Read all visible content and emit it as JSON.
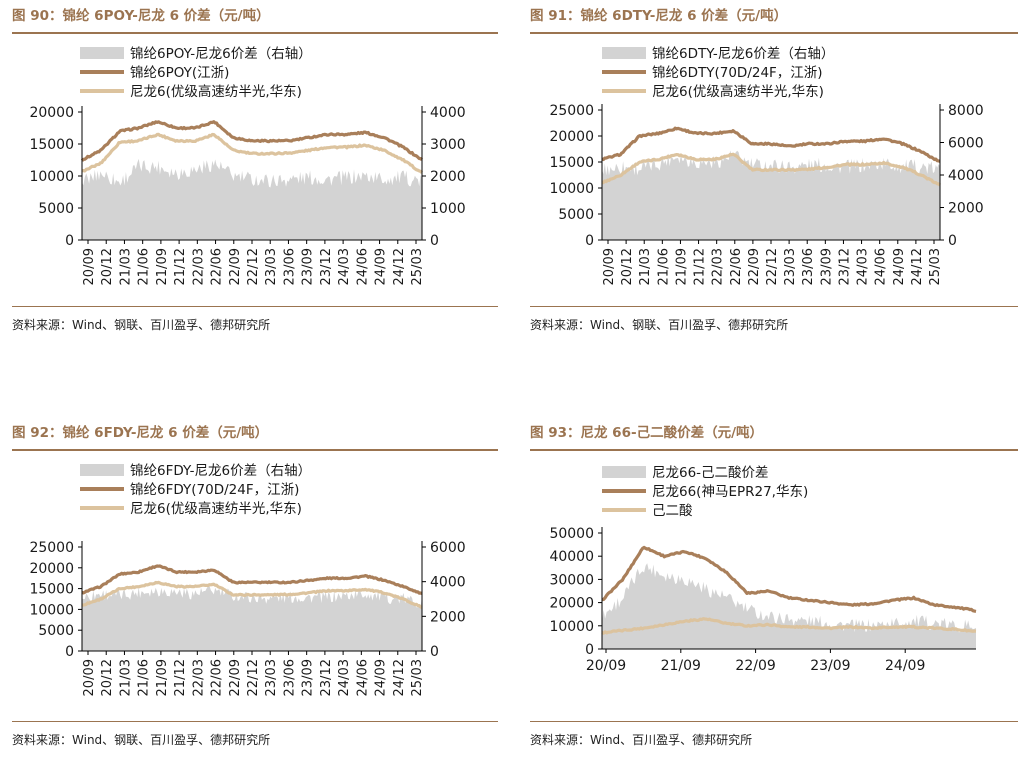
{
  "source_prefix": "资料来源：",
  "charts": [
    {
      "id": "fig90",
      "title": "图 90：锦纶 6POY-尼龙 6 价差（元/吨）",
      "source": "Wind、钢联、百川盈孚、德邦研究所",
      "chart_data": {
        "type": "line",
        "x_tick_labels": [
          "20/09",
          "20/12",
          "21/03",
          "21/06",
          "21/09",
          "21/12",
          "22/03",
          "22/06",
          "22/09",
          "22/12",
          "23/03",
          "23/06",
          "23/09",
          "23/12",
          "24/03",
          "24/06",
          "24/09",
          "24/12",
          "25/03"
        ],
        "left_ylim": [
          0,
          20000
        ],
        "left_yticks": [
          0,
          5000,
          10000,
          15000,
          20000
        ],
        "right_ylim": [
          0,
          4000
        ],
        "right_yticks": [
          0,
          1000,
          2000,
          3000,
          4000
        ],
        "x_tick_rotation": "vertical",
        "legend_position": "top-center",
        "series": [
          {
            "name": "锦纶6POY-尼龙6价差（右轴）",
            "kind": "area",
            "axis": "right",
            "color": "#d3d3d3",
            "x": [
              "20/09",
              "20/12",
              "21/03",
              "21/06",
              "21/09",
              "21/12",
              "22/03",
              "22/06",
              "22/09",
              "22/12",
              "23/03",
              "23/06",
              "23/09",
              "23/12",
              "24/03",
              "24/06",
              "24/09",
              "24/12",
              "25/03"
            ],
            "y": [
              1800,
              2100,
              1800,
              2300,
              2300,
              2100,
              2200,
              2400,
              2000,
              1900,
              1850,
              1900,
              1950,
              1900,
              1950,
              2000,
              1900,
              1950,
              1850
            ]
          },
          {
            "name": "锦纶6POY(江浙)",
            "kind": "line",
            "axis": "left",
            "color": "#a97f5a",
            "x": [
              "20/09",
              "20/12",
              "21/03",
              "21/06",
              "21/09",
              "21/12",
              "22/03",
              "22/06",
              "22/09",
              "22/12",
              "23/03",
              "23/06",
              "23/09",
              "23/12",
              "24/03",
              "24/06",
              "24/09",
              "24/12",
              "25/03"
            ],
            "y": [
              12500,
              14000,
              17000,
              17500,
              18500,
              17500,
              17500,
              18500,
              16000,
              15500,
              15500,
              15500,
              16000,
              16500,
              16500,
              16800,
              16000,
              14500,
              12500
            ]
          },
          {
            "name": "尼龙6(优级高速纺半光,华东)",
            "kind": "line",
            "axis": "left",
            "color": "#dcc39e",
            "x": [
              "20/09",
              "20/12",
              "21/03",
              "21/06",
              "21/09",
              "21/12",
              "22/03",
              "22/06",
              "22/09",
              "22/12",
              "23/03",
              "23/06",
              "23/09",
              "23/12",
              "24/03",
              "24/06",
              "24/09",
              "24/12",
              "25/03"
            ],
            "y": [
              10700,
              12000,
              15300,
              15500,
              16500,
              15500,
              15500,
              16500,
              14000,
              13500,
              13500,
              13600,
              14000,
              14500,
              14500,
              14800,
              14000,
              12500,
              10500
            ]
          }
        ]
      }
    },
    {
      "id": "fig91",
      "title": "图 91：锦纶 6DTY-尼龙 6 价差（元/吨）",
      "source": "Wind、钢联、百川盈孚、德邦研究所",
      "chart_data": {
        "type": "line",
        "x_tick_labels": [
          "20/09",
          "20/12",
          "21/03",
          "21/06",
          "21/09",
          "21/12",
          "22/03",
          "22/06",
          "22/09",
          "22/12",
          "23/03",
          "23/06",
          "23/09",
          "23/12",
          "24/03",
          "24/06",
          "24/09",
          "24/12",
          "25/03"
        ],
        "left_ylim": [
          0,
          25000
        ],
        "left_yticks": [
          0,
          5000,
          10000,
          15000,
          20000,
          25000
        ],
        "right_ylim": [
          0,
          8000
        ],
        "right_yticks": [
          0,
          2000,
          4000,
          6000,
          8000
        ],
        "x_tick_rotation": "vertical",
        "legend_position": "top-center",
        "series": [
          {
            "name": "锦纶6DTY-尼龙6价差（右轴）",
            "kind": "area",
            "axis": "right",
            "color": "#d3d3d3",
            "x": [
              "20/09",
              "20/12",
              "21/03",
              "21/06",
              "21/09",
              "21/12",
              "22/03",
              "22/06",
              "22/09",
              "22/12",
              "23/03",
              "23/06",
              "23/09",
              "23/12",
              "24/03",
              "24/06",
              "24/09",
              "24/12",
              "25/03"
            ],
            "y": [
              4300,
              4500,
              4400,
              4700,
              5200,
              4800,
              4800,
              5200,
              4600,
              4600,
              4500,
              4600,
              4600,
              4500,
              4600,
              4700,
              4500,
              4500,
              4300
            ]
          },
          {
            "name": "锦纶6DTY(70D/24F，江浙)",
            "kind": "line",
            "axis": "left",
            "color": "#a97f5a",
            "x": [
              "20/09",
              "20/12",
              "21/03",
              "21/06",
              "21/09",
              "21/12",
              "22/03",
              "22/06",
              "22/09",
              "22/12",
              "23/03",
              "23/06",
              "23/09",
              "23/12",
              "24/03",
              "24/06",
              "24/09",
              "24/12",
              "25/03"
            ],
            "y": [
              15500,
              16500,
              20000,
              20500,
              21500,
              20500,
              20500,
              21000,
              18500,
              18500,
              18000,
              18500,
              18500,
              19000,
              19000,
              19500,
              18500,
              17000,
              15000
            ]
          },
          {
            "name": "尼龙6(优级高速纺半光,华东)",
            "kind": "line",
            "axis": "left",
            "color": "#dcc39e",
            "x": [
              "20/09",
              "20/12",
              "21/03",
              "21/06",
              "21/09",
              "21/12",
              "22/03",
              "22/06",
              "22/09",
              "22/12",
              "23/03",
              "23/06",
              "23/09",
              "23/12",
              "24/03",
              "24/06",
              "24/09",
              "24/12",
              "25/03"
            ],
            "y": [
              11000,
              12500,
              15000,
              15500,
              16500,
              15500,
              15500,
              16500,
              13500,
              13500,
              13500,
              13600,
              14000,
              14500,
              14500,
              14800,
              14000,
              12500,
              10500
            ]
          }
        ]
      }
    },
    {
      "id": "fig92",
      "title": "图 92：锦纶 6FDY-尼龙 6 价差（元/吨）",
      "source": "Wind、钢联、百川盈孚、德邦研究所",
      "chart_data": {
        "type": "line",
        "x_tick_labels": [
          "20/09",
          "20/12",
          "21/03",
          "21/06",
          "21/09",
          "21/12",
          "22/03",
          "22/06",
          "22/09",
          "22/12",
          "23/03",
          "23/06",
          "23/09",
          "23/12",
          "24/03",
          "24/06",
          "24/09",
          "24/12",
          "25/03"
        ],
        "left_ylim": [
          0,
          25000
        ],
        "left_yticks": [
          0,
          5000,
          10000,
          15000,
          20000,
          25000
        ],
        "right_ylim": [
          0,
          6000
        ],
        "right_yticks": [
          0,
          2000,
          4000,
          6000
        ],
        "x_tick_rotation": "vertical",
        "legend_position": "top-center",
        "series": [
          {
            "name": "锦纶6FDY-尼龙6价差（右轴）",
            "kind": "area",
            "axis": "right",
            "color": "#d3d3d3",
            "x": [
              "20/09",
              "20/12",
              "21/03",
              "21/06",
              "21/09",
              "21/12",
              "22/03",
              "22/06",
              "22/09",
              "22/12",
              "23/03",
              "23/06",
              "23/09",
              "23/12",
              "24/03",
              "24/06",
              "24/09",
              "24/12",
              "25/03"
            ],
            "y": [
              3100,
              3300,
              3200,
              3400,
              3500,
              3400,
              3300,
              3500,
              3200,
              3100,
              3050,
              3100,
              3100,
              3100,
              3200,
              3300,
              3100,
              3000,
              2800
            ]
          },
          {
            "name": "锦纶6FDY(70D/24F，江浙)",
            "kind": "line",
            "axis": "left",
            "color": "#a97f5a",
            "x": [
              "20/09",
              "20/12",
              "21/03",
              "21/06",
              "21/09",
              "21/12",
              "22/03",
              "22/06",
              "22/09",
              "22/12",
              "23/03",
              "23/06",
              "23/09",
              "23/12",
              "24/03",
              "24/06",
              "24/09",
              "24/12",
              "25/03"
            ],
            "y": [
              14000,
              15500,
              18500,
              19000,
              20500,
              19000,
              19000,
              19500,
              16500,
              16500,
              16500,
              16500,
              17000,
              17500,
              17500,
              18000,
              17000,
              15500,
              13800
            ]
          },
          {
            "name": "尼龙6(优级高速纺半光,华东)",
            "kind": "line",
            "axis": "left",
            "color": "#dcc39e",
            "x": [
              "20/09",
              "20/12",
              "21/03",
              "21/06",
              "21/09",
              "21/12",
              "22/03",
              "22/06",
              "22/09",
              "22/12",
              "23/03",
              "23/06",
              "23/09",
              "23/12",
              "24/03",
              "24/06",
              "24/09",
              "24/12",
              "25/03"
            ],
            "y": [
              11000,
              12500,
              15000,
              15500,
              16500,
              15500,
              15500,
              16000,
              13500,
              13500,
              13500,
              13600,
              14000,
              14500,
              14500,
              14800,
              14000,
              12500,
              10500
            ]
          }
        ]
      }
    },
    {
      "id": "fig93",
      "title": "图 93：尼龙 66-己二酸价差（元/吨）",
      "source": "Wind、百川盈孚、德邦研究所",
      "chart_data": {
        "type": "line",
        "x_tick_labels": [
          "20/09",
          "21/09",
          "22/09",
          "23/09",
          "24/09"
        ],
        "left_ylim": [
          0,
          50000
        ],
        "left_yticks": [
          0,
          10000,
          20000,
          30000,
          40000,
          50000
        ],
        "x_tick_rotation": "horizontal",
        "legend_position": "top-center",
        "series": [
          {
            "name": "尼龙66-己二酸价差",
            "kind": "area",
            "axis": "left",
            "color": "#d3d3d3",
            "x": [
              "20/09",
              "20/12",
              "21/03",
              "21/06",
              "21/09",
              "21/12",
              "22/03",
              "22/06",
              "22/09",
              "22/12",
              "23/03",
              "23/06",
              "23/09",
              "23/12",
              "24/03",
              "24/06",
              "24/09",
              "24/12",
              "25/03"
            ],
            "y": [
              14000,
              22000,
              36000,
              32000,
              30000,
              26000,
              22000,
              17000,
              14000,
              13000,
              12000,
              11000,
              10000,
              10000,
              11000,
              12000,
              11000,
              10000,
              10000
            ]
          },
          {
            "name": "尼龙66(神马EPR27,华东)",
            "kind": "line",
            "axis": "left",
            "color": "#a97f5a",
            "x": [
              "20/09",
              "20/12",
              "21/03",
              "21/06",
              "21/09",
              "21/12",
              "22/03",
              "22/06",
              "22/09",
              "22/12",
              "23/03",
              "23/06",
              "23/09",
              "23/12",
              "24/03",
              "24/06",
              "24/09",
              "24/12",
              "25/03"
            ],
            "y": [
              21000,
              30000,
              44000,
              40000,
              42000,
              39000,
              33000,
              24000,
              25000,
              22000,
              21000,
              20000,
              19000,
              19500,
              21000,
              22000,
              19000,
              18000,
              16500
            ]
          },
          {
            "name": "己二酸",
            "kind": "line",
            "axis": "left",
            "color": "#dcc39e",
            "x": [
              "20/09",
              "20/12",
              "21/03",
              "21/06",
              "21/09",
              "21/12",
              "22/03",
              "22/06",
              "22/09",
              "22/12",
              "23/03",
              "23/06",
              "23/09",
              "23/12",
              "24/03",
              "24/06",
              "24/09",
              "24/12",
              "25/03"
            ],
            "y": [
              7000,
              8000,
              9000,
              10500,
              12000,
              13000,
              11000,
              10000,
              10500,
              9500,
              9500,
              9000,
              9500,
              9000,
              9500,
              9500,
              9000,
              8500,
              7500
            ]
          }
        ]
      }
    }
  ]
}
